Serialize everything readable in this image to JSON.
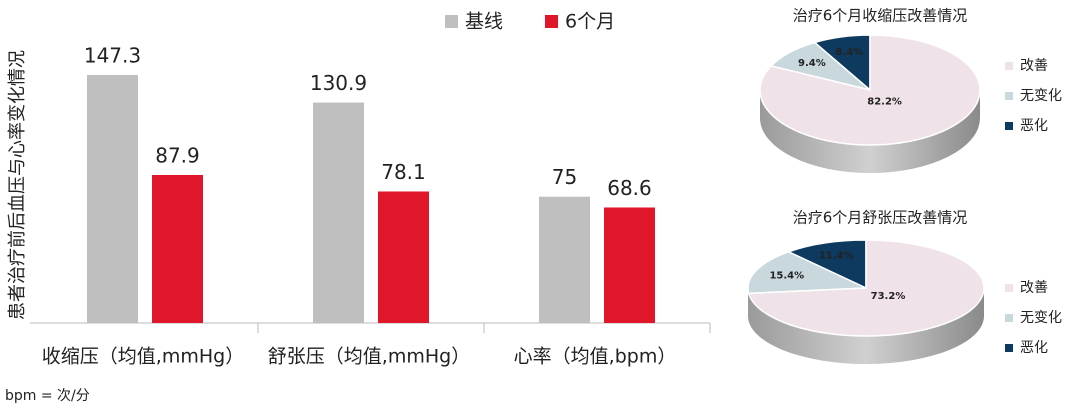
{
  "chart_data": [
    {
      "type": "bar",
      "y_label": "患者治疗前后血压与心率变化情况",
      "categories": [
        "收缩压（均值,mmHg）",
        "舒张压（均值,mmHg）",
        "心率（均值,bpm）"
      ],
      "series": [
        {
          "name": "基线",
          "color": "#bfbfbf",
          "values": [
            147.3,
            130.9,
            75
          ]
        },
        {
          "name": "6个月",
          "color": "#e0162b",
          "values": [
            87.9,
            78.1,
            68.6
          ]
        }
      ],
      "ylim": [
        0,
        160
      ],
      "footnote": "bpm = 次/分"
    },
    {
      "type": "pie",
      "title": "治疗6个月收缩压改善情况",
      "categories": [
        "改善",
        "无变化",
        "恶化"
      ],
      "values": [
        82.2,
        9.4,
        8.4
      ],
      "value_labels": [
        "82.2%",
        "9.4%",
        "8.4%"
      ],
      "colors": [
        "#efe2e8",
        "#c9d8dd",
        "#0d3a5e"
      ]
    },
    {
      "type": "pie",
      "title": "治疗6个月舒张压改善情况",
      "categories": [
        "改善",
        "无变化",
        "恶化"
      ],
      "values": [
        73.2,
        15.4,
        11.4
      ],
      "value_labels": [
        "73.2%",
        "15.4%",
        "11.4%"
      ],
      "colors": [
        "#efe2e8",
        "#c9d8dd",
        "#0d3a5e"
      ]
    }
  ]
}
